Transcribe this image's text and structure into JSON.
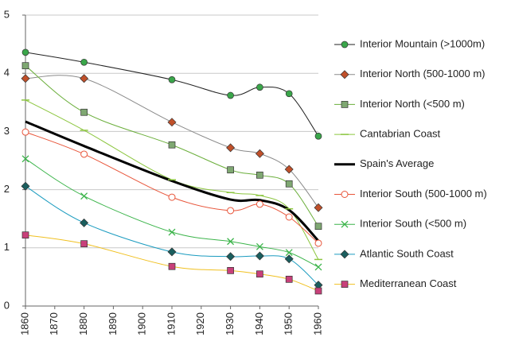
{
  "chart_data": {
    "type": "line",
    "x": [
      1860,
      1880,
      1910,
      1930,
      1940,
      1950,
      1960
    ],
    "xlim": [
      1860,
      1960
    ],
    "xticks": [
      1860,
      1870,
      1880,
      1890,
      1900,
      1910,
      1920,
      1930,
      1940,
      1950,
      1960
    ],
    "ylim": [
      0,
      5
    ],
    "yticks": [
      0,
      1,
      2,
      3,
      4,
      5
    ],
    "grid": true,
    "smooth": true,
    "legend": "right",
    "series": [
      {
        "name": "Interior Mountain (>1000m)",
        "color": "#222222",
        "marker_color": "#3aa64a",
        "marker": "circle",
        "values": [
          4.36,
          4.19,
          3.89,
          3.62,
          3.76,
          3.65,
          2.92
        ]
      },
      {
        "name": "Interior North (500-1000 m)",
        "color": "#8a8a8a",
        "marker_color": "#c0502a",
        "marker": "diamond",
        "values": [
          3.91,
          3.91,
          3.16,
          2.72,
          2.62,
          2.35,
          1.69
        ]
      },
      {
        "name": "Interior North (<500 m)",
        "color": "#6aae3a",
        "marker_color": "#7fa872",
        "marker": "square",
        "values": [
          4.13,
          3.33,
          2.77,
          2.34,
          2.25,
          2.1,
          1.37
        ]
      },
      {
        "name": "Cantabrian Coast",
        "color": "#8cc63f",
        "marker_color": "#8cc63f",
        "marker": "dash",
        "values": [
          3.54,
          3.02,
          2.17,
          1.95,
          1.9,
          1.67,
          0.8
        ]
      },
      {
        "name": "Spain's Average",
        "color": "#000000",
        "marker_color": "#000000",
        "marker": "none",
        "width": 3,
        "values": [
          3.17,
          2.75,
          2.15,
          1.83,
          1.82,
          1.65,
          1.12
        ]
      },
      {
        "name": "Interior South (500-1000 m)",
        "color": "#e8553a",
        "marker_color": "#e8553a",
        "marker": "open-circle",
        "values": [
          2.99,
          2.61,
          1.87,
          1.64,
          1.75,
          1.53,
          1.08
        ]
      },
      {
        "name": "Interior South (<500 m)",
        "color": "#3bb44a",
        "marker_color": "#3bb44a",
        "marker": "x",
        "values": [
          2.53,
          1.89,
          1.27,
          1.11,
          1.02,
          0.92,
          0.67
        ]
      },
      {
        "name": "Atlantic South Coast",
        "color": "#1a9bbf",
        "marker_color": "#1a5e5e",
        "marker": "diamond",
        "values": [
          2.06,
          1.43,
          0.93,
          0.85,
          0.86,
          0.81,
          0.36
        ]
      },
      {
        "name": "Mediterranean Coast",
        "color": "#f0c020",
        "marker_color": "#c8407a",
        "marker": "square",
        "values": [
          1.22,
          1.07,
          0.68,
          0.61,
          0.55,
          0.46,
          0.26
        ]
      }
    ]
  }
}
